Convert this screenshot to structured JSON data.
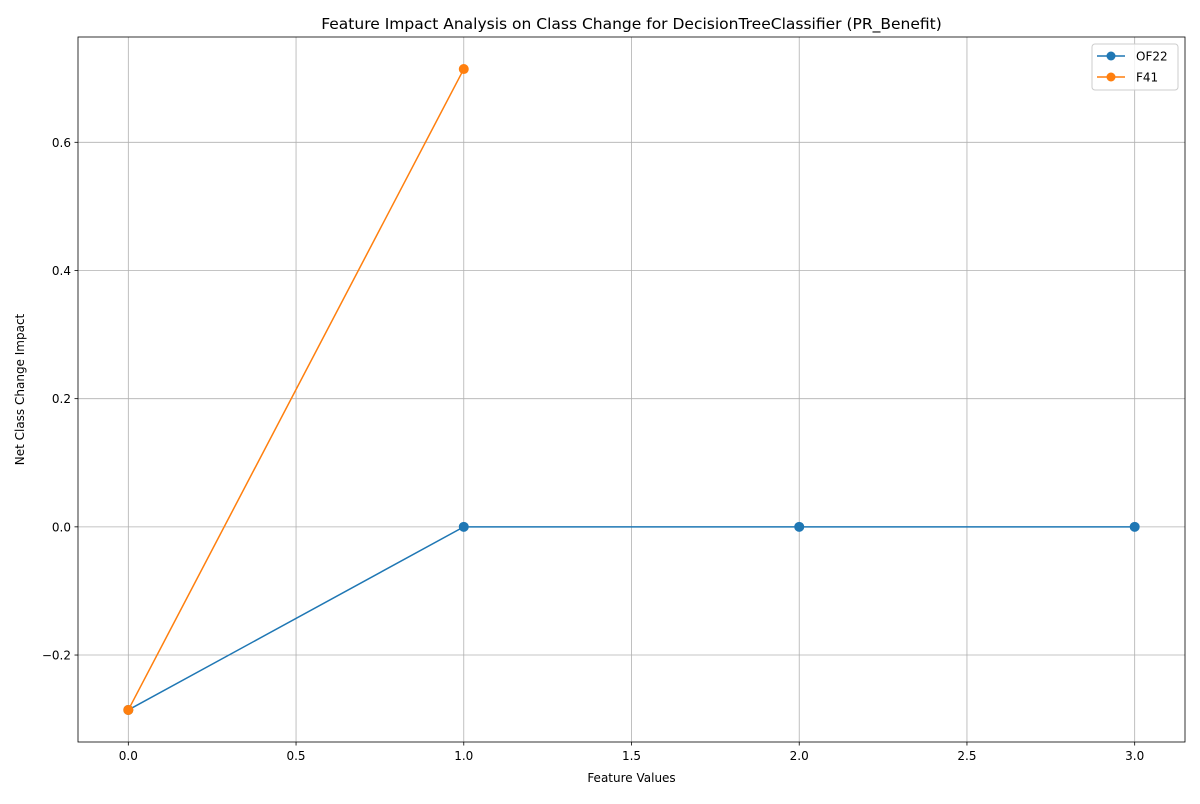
{
  "chart_data": {
    "type": "line",
    "title": "Feature Impact Analysis on Class Change for DecisionTreeClassifier (PR_Benefit)",
    "xlabel": "Feature Values",
    "ylabel": "Net Class Change Impact",
    "xlim": [
      -0.15,
      3.15
    ],
    "ylim": [
      -0.3357,
      0.7643
    ],
    "x_ticks": [
      0.0,
      0.5,
      1.0,
      1.5,
      2.0,
      2.5,
      3.0
    ],
    "x_tick_labels": [
      "0.0",
      "0.5",
      "1.0",
      "1.5",
      "2.0",
      "2.5",
      "3.0"
    ],
    "y_ticks": [
      -0.2,
      0.0,
      0.2,
      0.4,
      0.6
    ],
    "y_tick_labels": [
      "−0.2",
      "0.0",
      "0.2",
      "0.4",
      "0.6"
    ],
    "grid": true,
    "legend_position": "top-right",
    "series": [
      {
        "name": "OF22",
        "color": "#1f77b4",
        "marker": "circle",
        "x": [
          0,
          1,
          2,
          3
        ],
        "y": [
          -0.2857,
          0.0,
          0.0,
          0.0
        ]
      },
      {
        "name": "F41",
        "color": "#ff7f0e",
        "marker": "circle",
        "x": [
          0,
          1
        ],
        "y": [
          -0.2857,
          0.7143
        ]
      }
    ]
  }
}
